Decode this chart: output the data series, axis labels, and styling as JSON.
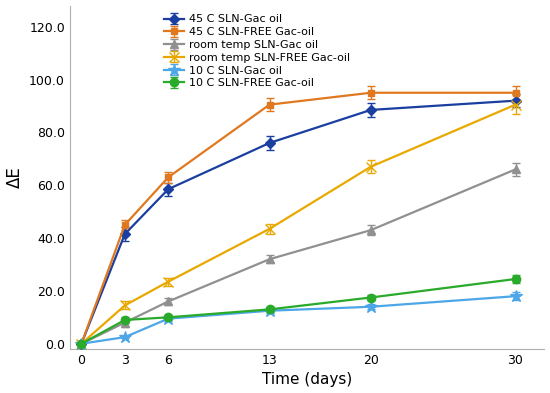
{
  "x": [
    0,
    3,
    6,
    13,
    20,
    30
  ],
  "series": [
    {
      "label": "45 C SLN-Gac oil",
      "color": "#1a3fa0",
      "marker": "D",
      "markersize": 5,
      "markerfilled": true,
      "y": [
        0,
        41.5,
        58.5,
        76.0,
        88.5,
        92.0
      ],
      "yerr": [
        0,
        2.5,
        2.5,
        2.5,
        2.5,
        2.5
      ]
    },
    {
      "label": "45 C SLN-FREE Gac-oil",
      "color": "#e07820",
      "marker": "s",
      "markersize": 5,
      "markerfilled": true,
      "y": [
        0,
        45.0,
        63.0,
        90.5,
        95.0,
        95.0
      ],
      "yerr": [
        0,
        2.0,
        2.0,
        2.5,
        2.5,
        2.5
      ]
    },
    {
      "label": "room temp SLN-Gac oil",
      "color": "#909090",
      "marker": "^",
      "markersize": 6,
      "markerfilled": true,
      "y": [
        0,
        8.0,
        16.0,
        32.0,
        43.0,
        66.0
      ],
      "yerr": [
        0,
        1.5,
        1.5,
        1.5,
        2.0,
        2.5
      ]
    },
    {
      "label": "room temp SLN-FREE Gac-oil",
      "color": "#e8a800",
      "marker": "x",
      "markersize": 7,
      "markerfilled": false,
      "y": [
        0,
        14.5,
        23.5,
        43.5,
        67.0,
        90.5
      ],
      "yerr": [
        0,
        1.5,
        1.5,
        2.0,
        2.5,
        3.5
      ]
    },
    {
      "label": "10 C SLN-Gac oil",
      "color": "#4da6e8",
      "marker": "*",
      "markersize": 9,
      "markerfilled": true,
      "y": [
        0,
        2.5,
        9.5,
        12.5,
        14.0,
        18.0
      ],
      "yerr": [
        0,
        0.5,
        1.0,
        1.0,
        1.0,
        1.5
      ]
    },
    {
      "label": "10 C SLN-FREE Gac-oil",
      "color": "#2aaa2a",
      "marker": "o",
      "markersize": 6,
      "markerfilled": true,
      "y": [
        0,
        9.0,
        10.0,
        13.0,
        17.5,
        24.5
      ],
      "yerr": [
        0,
        1.0,
        1.0,
        1.0,
        1.0,
        1.5
      ]
    }
  ],
  "xlabel": "Time (days)",
  "ylabel": "ΔE",
  "ylim": [
    -2,
    128
  ],
  "yticks": [
    0.0,
    20.0,
    40.0,
    60.0,
    80.0,
    100.0,
    120.0
  ],
  "xticks": [
    0,
    3,
    6,
    13,
    20,
    30
  ],
  "figsize": [
    5.5,
    3.93
  ],
  "dpi": 100
}
